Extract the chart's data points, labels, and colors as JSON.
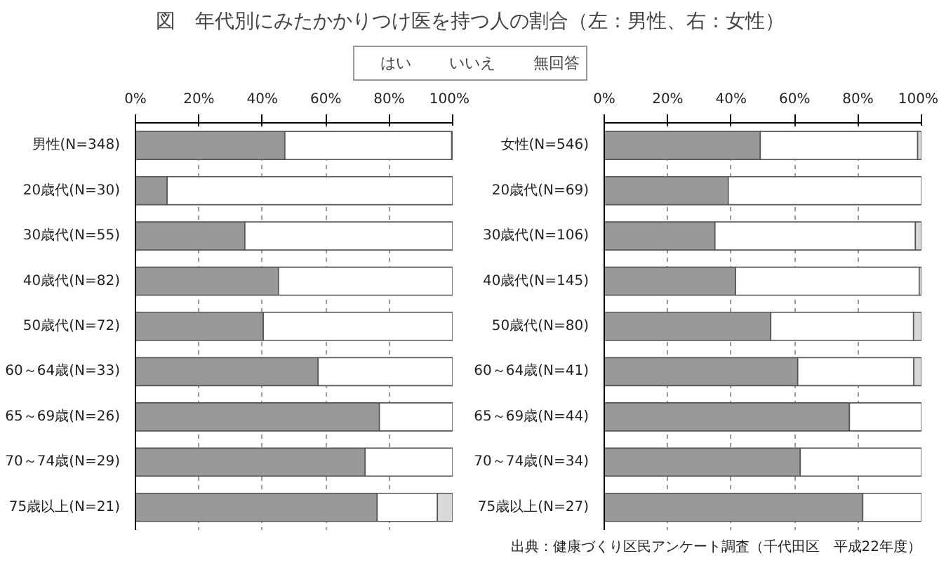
{
  "chart_data": [
    {
      "type": "bar",
      "orientation": "horizontal",
      "stacked": true,
      "title": "図　年代別にみたかかりつけ医を持つ人の割合（左：男性、右：女性）",
      "legend": "top",
      "grid": "x",
      "xlim": [
        0,
        100
      ],
      "xticks": [
        {
          "value": 0,
          "label": "0%"
        },
        {
          "value": 20,
          "label": "20%"
        },
        {
          "value": 40,
          "label": "40%"
        },
        {
          "value": 60,
          "label": "60%"
        },
        {
          "value": 80,
          "label": "80%"
        },
        {
          "value": 100,
          "label": "100%"
        }
      ],
      "categories": [
        "男性(N=348)",
        "20歳代(N=30)",
        "30歳代(N=55)",
        "40歳代(N=82)",
        "50歳代(N=72)",
        "60～64歳(N=33)",
        "65～69歳(N=26)",
        "70～74歳(N=29)",
        "75歳以上(N=21)"
      ],
      "series": [
        {
          "name": "はい",
          "color": "#999999",
          "values": [
            47.1,
            10,
            34.5,
            45.1,
            40.3,
            57.6,
            76.9,
            72.4,
            76.2
          ]
        },
        {
          "name": "いいえ",
          "color": "#ffffff",
          "values": [
            52.6,
            90,
            65.5,
            54.9,
            59.7,
            42.4,
            23.1,
            27.6,
            19
          ]
        },
        {
          "name": "無回答",
          "color": "#d9d9d9",
          "values": [
            0.3,
            0,
            0,
            0,
            0,
            0,
            0,
            0,
            4.8
          ]
        }
      ]
    },
    {
      "type": "bar",
      "orientation": "horizontal",
      "stacked": true,
      "grid": "x",
      "xlim": [
        0,
        100
      ],
      "xticks": [
        {
          "value": 0,
          "label": "0%"
        },
        {
          "value": 20,
          "label": "20%"
        },
        {
          "value": 40,
          "label": "40%"
        },
        {
          "value": 60,
          "label": "60%"
        },
        {
          "value": 80,
          "label": "80%"
        },
        {
          "value": 100,
          "label": "100%"
        }
      ],
      "categories": [
        "女性(N=546)",
        "20歳代(N=69)",
        "30歳代(N=106)",
        "40歳代(N=145)",
        "50歳代(N=80)",
        "60～64歳(N=41)",
        "65～69歳(N=44)",
        "70～74歳(N=34)",
        "75歳以上(N=27)"
      ],
      "series": [
        {
          "color": "#999999",
          "values": [
            49.2,
            39.1,
            34.9,
            41.4,
            52.5,
            61,
            77.3,
            61.8,
            81.5
          ]
        },
        {
          "color": "#ffffff",
          "values": [
            49.6,
            60.9,
            63.2,
            57.9,
            45,
            36.6,
            22.7,
            38.2,
            18.5
          ]
        },
        {
          "color": "#d9d9d9",
          "values": [
            1.2,
            0,
            1.9,
            0.7,
            2.5,
            2.4,
            0,
            0,
            0
          ]
        }
      ],
      "annotations": [
        "出典：健康づくり区民アンケート調査（千代田区　平成22年度）"
      ]
    }
  ]
}
